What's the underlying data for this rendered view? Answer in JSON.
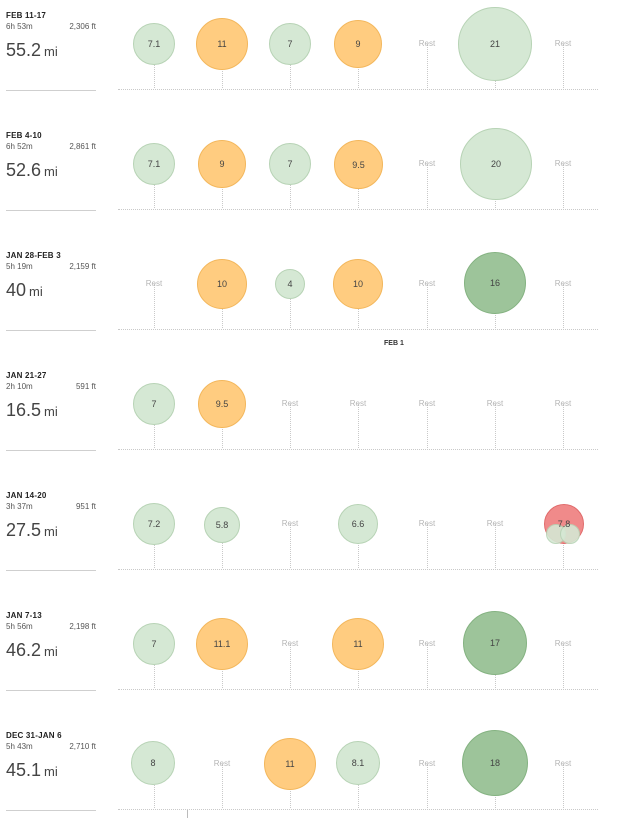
{
  "weeks": [
    {
      "range": "FEB 11-17",
      "time": "6h 53m",
      "elev": "2,306 ft",
      "dist": "55.2",
      "unit": "mi"
    },
    {
      "range": "FEB 4-10",
      "time": "6h 52m",
      "elev": "2,861 ft",
      "dist": "52.6",
      "unit": "mi"
    },
    {
      "range": "JAN 28-FEB 3",
      "time": "5h 19m",
      "elev": "2,159 ft",
      "dist": "40",
      "unit": "mi"
    },
    {
      "range": "JAN 21-27",
      "time": "2h 10m",
      "elev": "591 ft",
      "dist": "16.5",
      "unit": "mi"
    },
    {
      "range": "JAN 14-20",
      "time": "3h 37m",
      "elev": "951 ft",
      "dist": "27.5",
      "unit": "mi"
    },
    {
      "range": "JAN 7-13",
      "time": "5h 56m",
      "elev": "2,198 ft",
      "dist": "46.2",
      "unit": "mi"
    },
    {
      "range": "DEC 31-JAN 6",
      "time": "5h 43m",
      "elev": "2,710 ft",
      "dist": "45.1",
      "unit": "mi"
    }
  ],
  "days": {
    "w0": [
      "7.1",
      "11",
      "7",
      "9",
      "Rest",
      "21",
      "Rest"
    ],
    "w1": [
      "7.1",
      "9",
      "7",
      "9.5",
      "Rest",
      "20",
      "Rest"
    ],
    "w2": [
      "Rest",
      "10",
      "4",
      "10",
      "Rest",
      "16",
      "Rest"
    ],
    "w3": [
      "7",
      "9.5",
      "Rest",
      "Rest",
      "Rest",
      "Rest",
      "Rest"
    ],
    "w4": [
      "7.2",
      "5.8",
      "Rest",
      "6.6",
      "Rest",
      "Rest",
      "7.8"
    ],
    "w5": [
      "7",
      "11.1",
      "Rest",
      "11",
      "Rest",
      "17",
      "Rest"
    ],
    "w6": [
      "8",
      "Rest",
      "11",
      "8.1",
      "Rest",
      "18",
      "Rest"
    ]
  },
  "month_marker": "FEB 1",
  "colors": {
    "easy": "#d5e8d4",
    "medium": "#ffcc80",
    "long": "#9dc49a",
    "race": "#f08a8a"
  }
}
